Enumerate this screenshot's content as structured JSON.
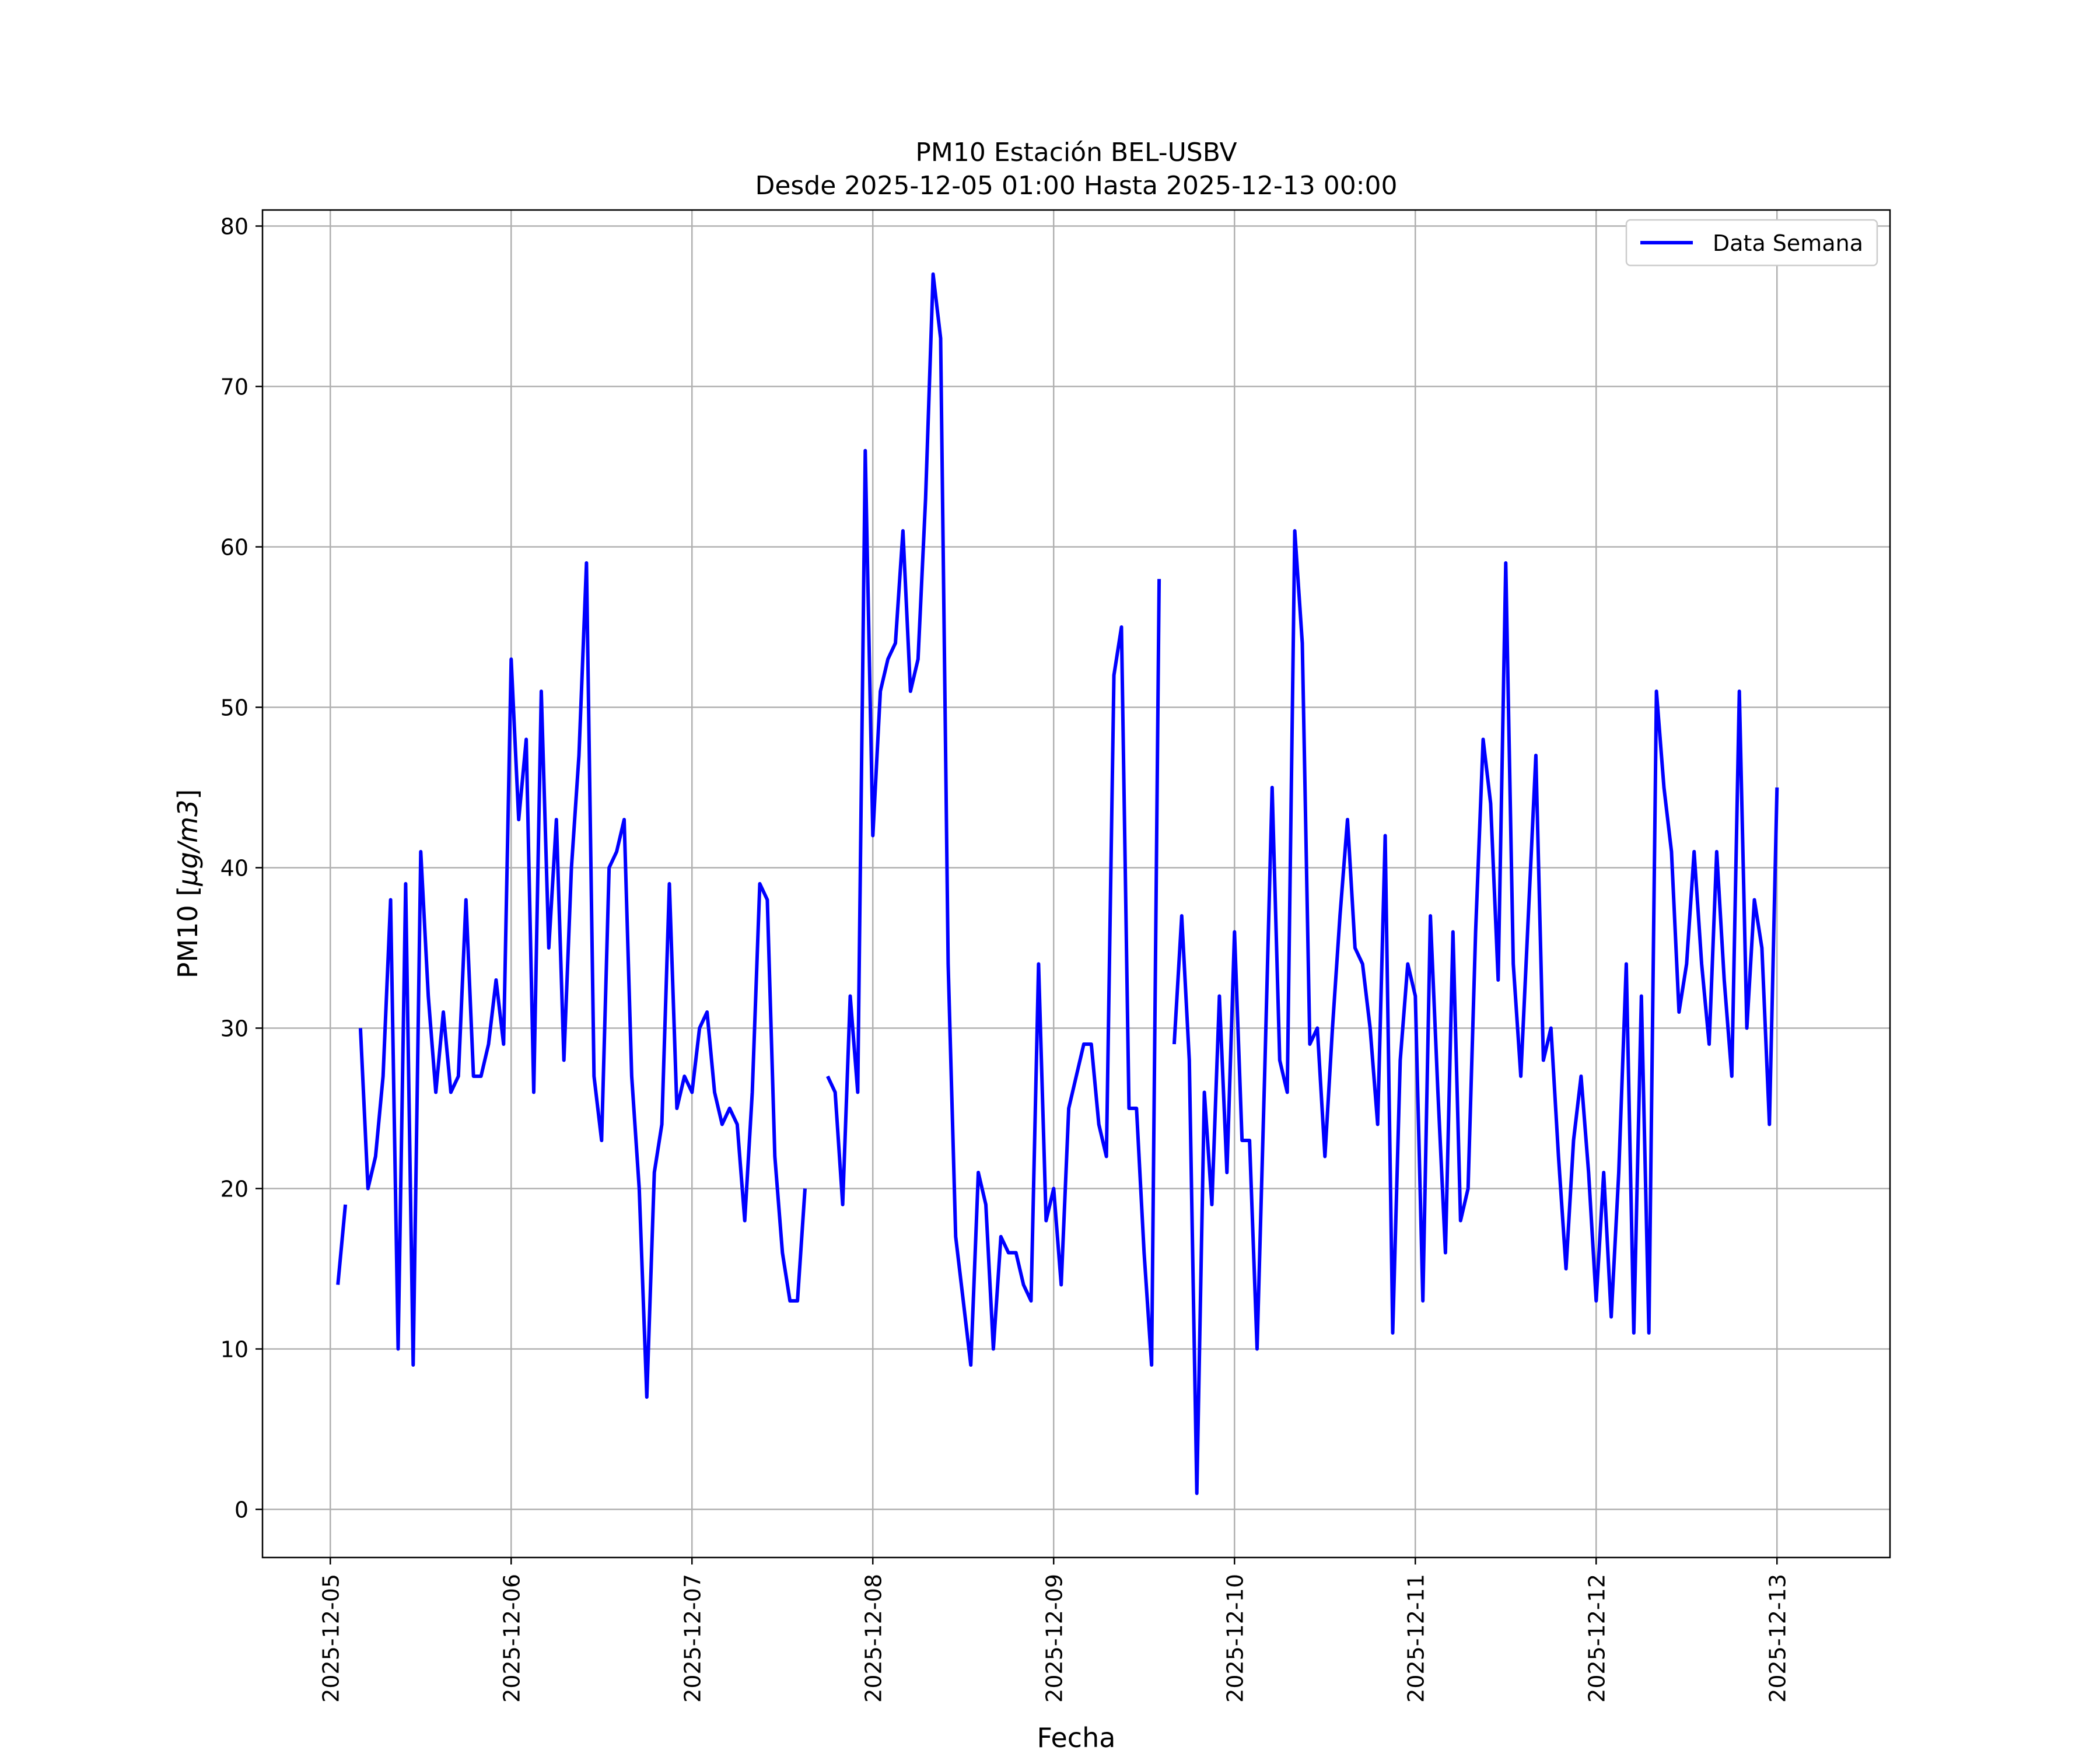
{
  "chart_data": {
    "type": "line",
    "title": "PM10 Estación BEL-USBV",
    "subtitle": "Desde 2025-12-05 01:00 Hasta 2025-12-13 00:00",
    "xlabel": "Fecha",
    "ylabel_main": "PM10 [",
    "ylabel_unit": "μg/m3",
    "ylabel_close": "]",
    "x_ticks": [
      "2025-12-05",
      "2025-12-06",
      "2025-12-07",
      "2025-12-08",
      "2025-12-09",
      "2025-12-10",
      "2025-12-11",
      "2025-12-12",
      "2025-12-13"
    ],
    "y_ticks": [
      0,
      10,
      20,
      30,
      40,
      50,
      60,
      70,
      80
    ],
    "xlim": [
      "2025-12-04T15:00",
      "2025-12-13T15:00"
    ],
    "ylim": [
      -3,
      81
    ],
    "grid": true,
    "legend_position": "top-right",
    "series": [
      {
        "name": "Data Semana",
        "color": "#0000ff",
        "x_start": "2025-12-05T01:00",
        "x_step_hours": 1,
        "values": [
          14,
          19,
          null,
          30,
          20,
          22,
          27,
          38,
          10,
          39,
          9,
          41,
          32,
          26,
          31,
          26,
          27,
          38,
          27,
          27,
          29,
          33,
          29,
          53,
          43,
          48,
          26,
          51,
          35,
          43,
          28,
          40,
          47,
          59,
          27,
          23,
          40,
          41,
          43,
          27,
          20,
          7,
          21,
          24,
          39,
          25,
          27,
          26,
          30,
          31,
          26,
          24,
          25,
          24,
          18,
          26,
          39,
          38,
          22,
          16,
          13,
          13,
          20,
          null,
          null,
          27,
          26,
          19,
          32,
          26,
          66,
          42,
          51,
          53,
          54,
          61,
          51,
          53,
          63,
          77,
          73,
          34,
          17,
          13,
          9,
          21,
          19,
          10,
          17,
          16,
          16,
          14,
          13,
          34,
          18,
          20,
          14,
          25,
          27,
          29,
          29,
          24,
          22,
          52,
          55,
          25,
          25,
          16,
          9,
          58,
          null,
          29,
          37,
          28,
          1,
          26,
          19,
          32,
          21,
          36,
          23,
          23,
          10,
          27,
          45,
          28,
          26,
          61,
          54,
          29,
          30,
          22,
          30,
          37,
          43,
          35,
          34,
          30,
          24,
          42,
          11,
          28,
          34,
          32,
          13,
          37,
          26,
          16,
          36,
          18,
          20,
          36,
          48,
          44,
          33,
          59,
          34,
          27,
          37,
          47,
          28,
          30,
          22,
          15,
          23,
          27,
          21,
          13,
          21,
          12,
          21,
          34,
          11,
          32,
          11,
          51,
          45,
          41,
          31,
          34,
          41,
          34,
          29,
          41,
          33,
          27,
          51,
          30,
          38,
          35,
          24,
          45
        ]
      }
    ]
  }
}
